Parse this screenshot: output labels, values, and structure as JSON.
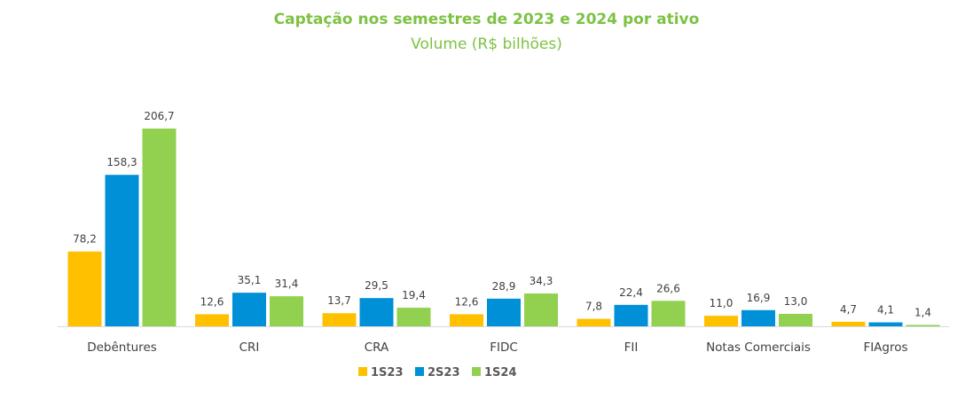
{
  "chart_data": {
    "type": "bar",
    "title": "Captação nos semestres de 2023 e 2024 por ativo",
    "subtitle": "Volume (R$ bilhões)",
    "xlabel": "",
    "ylabel": "",
    "ylim": [
      0,
      210
    ],
    "grid": false,
    "legend": "bottom",
    "categories": [
      "Debêntures",
      "CRI",
      "CRA",
      "FIDC",
      "FII",
      "Notas Comerciais",
      "FIAgros"
    ],
    "series": [
      {
        "name": "1S23",
        "color": "#ffc000",
        "values": [
          78.2,
          12.6,
          13.7,
          12.6,
          7.8,
          11.0,
          4.7
        ],
        "labels": [
          "78,2",
          "12,6",
          "13,7",
          "12,6",
          "7,8",
          "11,0",
          "4,7"
        ]
      },
      {
        "name": "2S23",
        "color": "#0090d8",
        "values": [
          158.3,
          35.1,
          29.5,
          28.9,
          22.4,
          16.9,
          4.1
        ],
        "labels": [
          "158,3",
          "35,1",
          "29,5",
          "28,9",
          "22,4",
          "16,9",
          "4,1"
        ]
      },
      {
        "name": "1S24",
        "color": "#92d050",
        "values": [
          206.7,
          31.4,
          19.4,
          34.3,
          26.6,
          13.0,
          1.4
        ],
        "labels": [
          "206,7",
          "31,4",
          "19,4",
          "34,3",
          "26,6",
          "13,0",
          "1,4"
        ]
      }
    ]
  }
}
